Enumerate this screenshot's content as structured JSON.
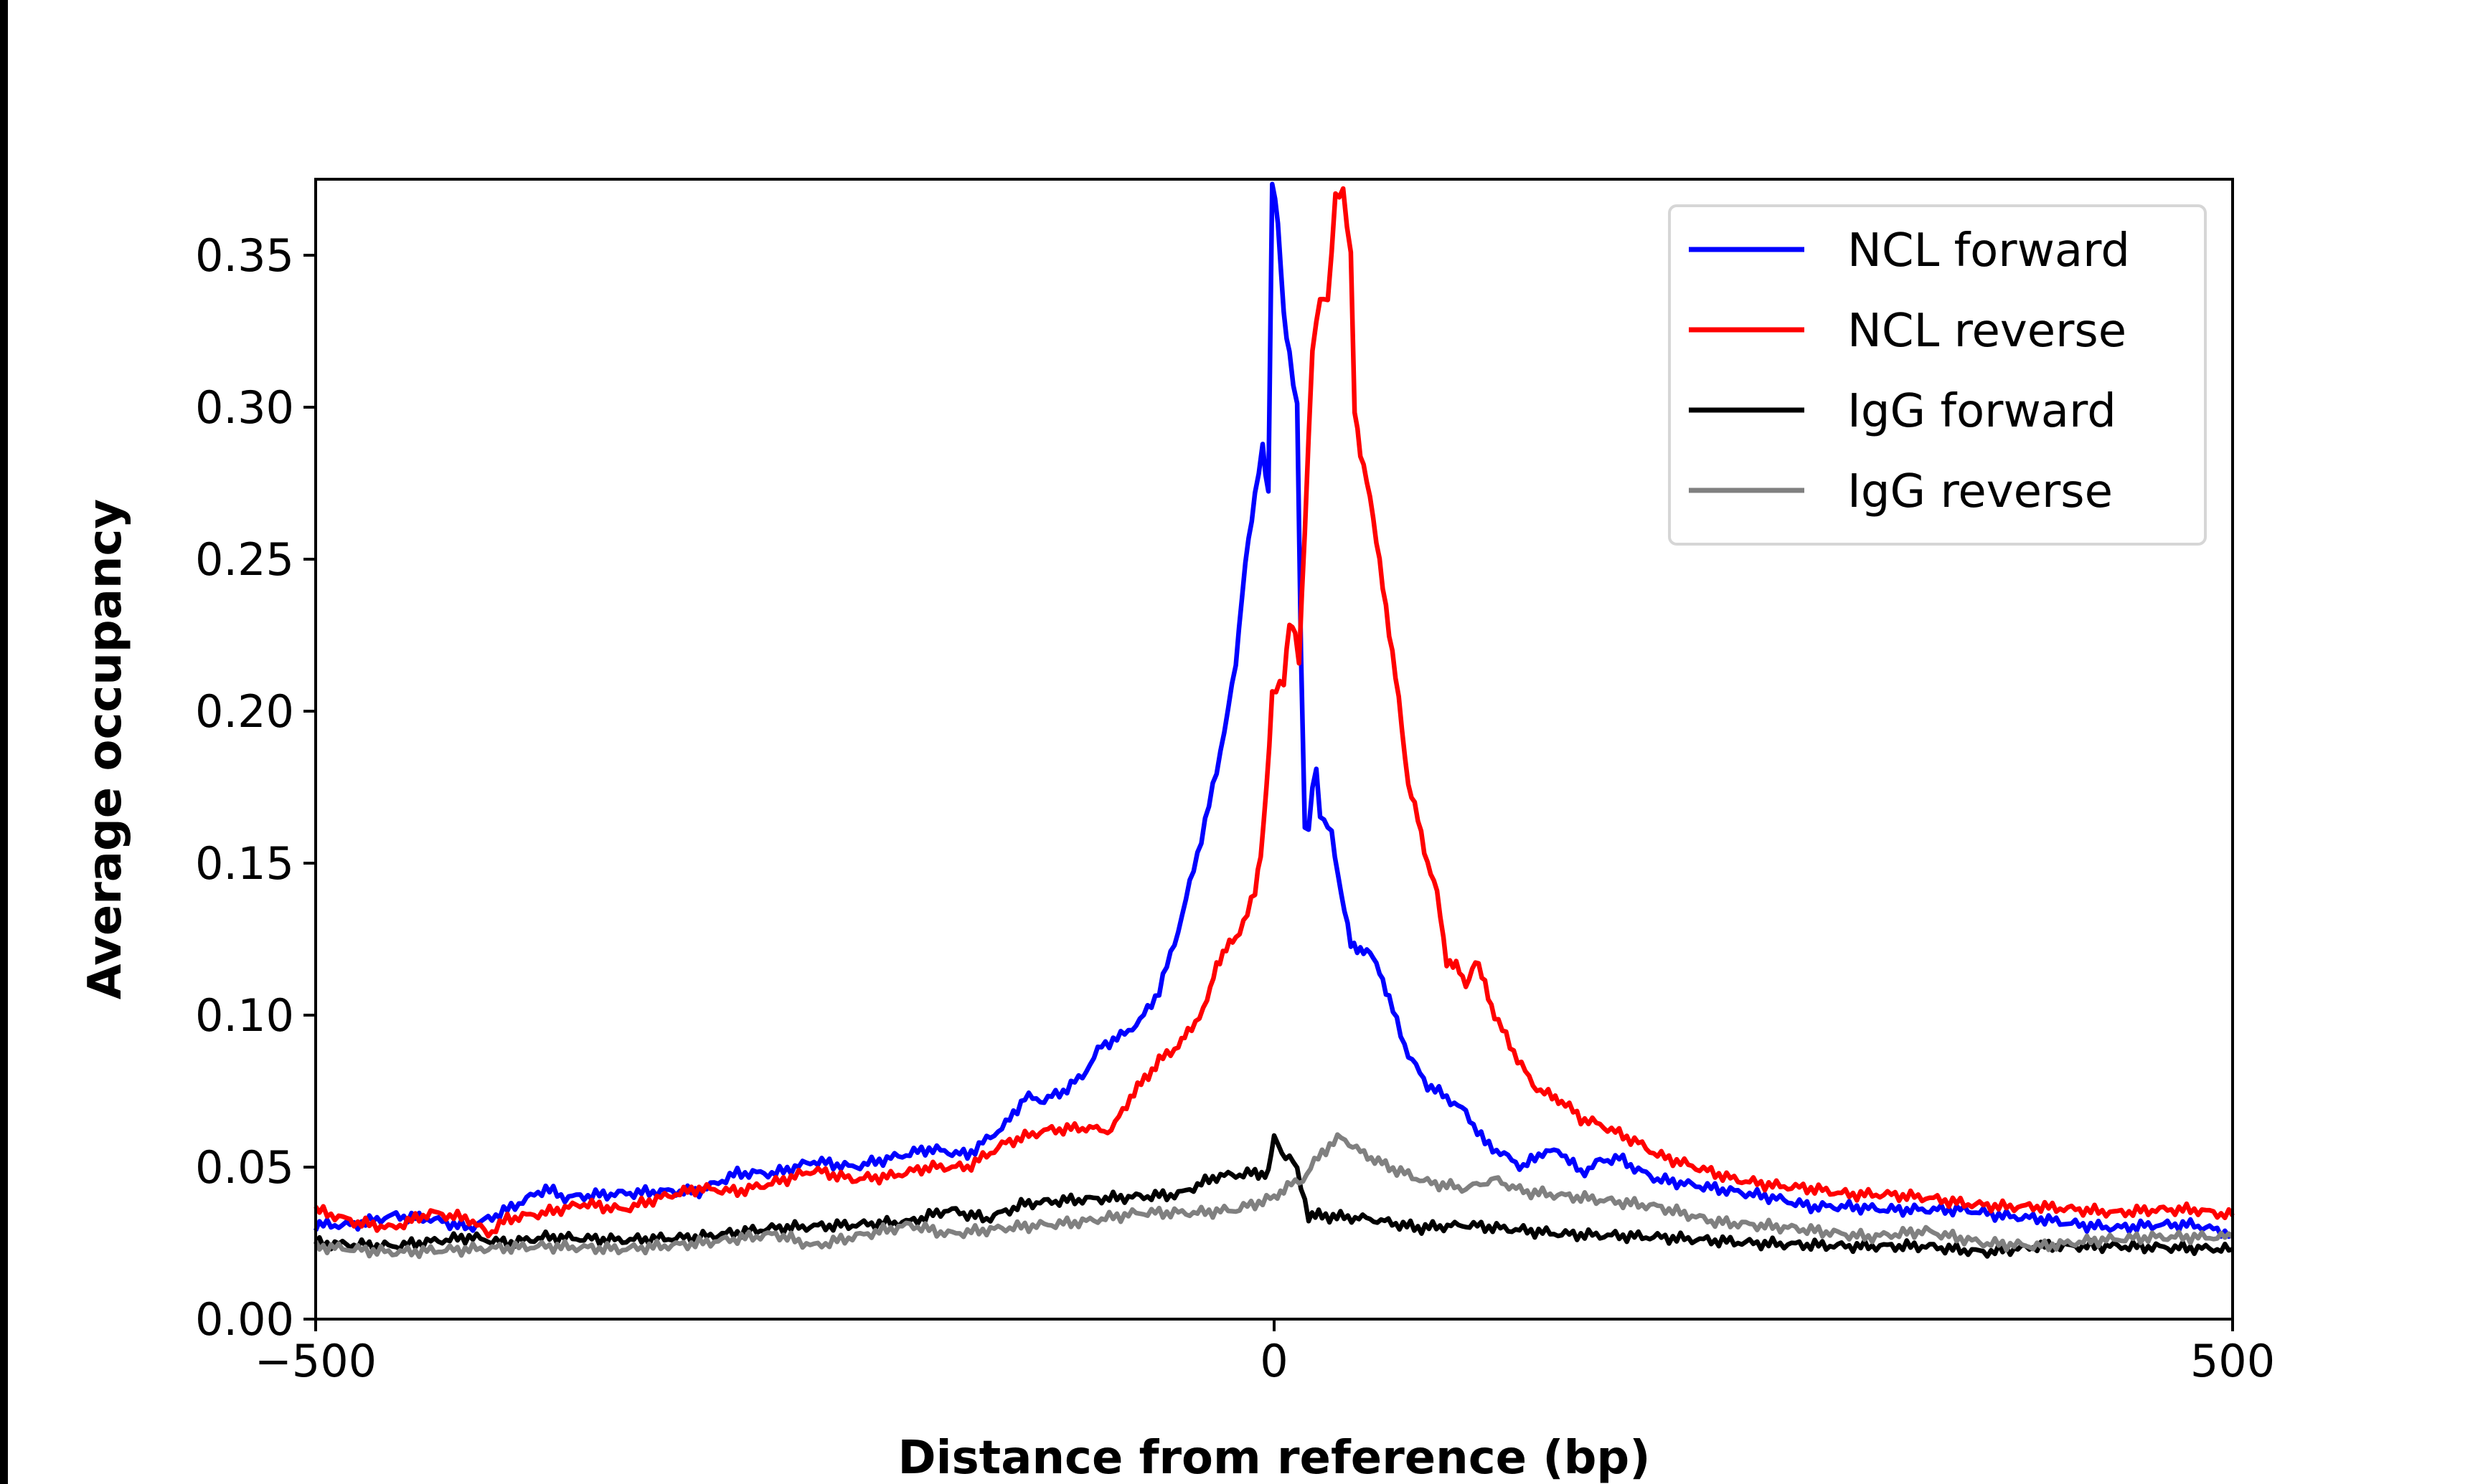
{
  "chart_data": {
    "type": "line",
    "title": "",
    "xlabel": "Distance from reference (bp)",
    "ylabel": "Average occupancy",
    "xlim": [
      -500,
      500
    ],
    "ylim": [
      0,
      0.375
    ],
    "xticks": [
      -500,
      0,
      500
    ],
    "xtick_labels": [
      "−500",
      "0",
      "500"
    ],
    "yticks": [
      0,
      0.05,
      0.1,
      0.15,
      0.2,
      0.25,
      0.3,
      0.35
    ],
    "ytick_labels": [
      "0.00",
      "0.05",
      "0.10",
      "0.15",
      "0.20",
      "0.25",
      "0.30",
      "0.35"
    ],
    "grid": false,
    "legend_position": "top-right",
    "series": [
      {
        "name": "NCL forward",
        "color": "#0000ff",
        "x": [
          -500,
          -480,
          -460,
          -440,
          -420,
          -400,
          -380,
          -370,
          -350,
          -320,
          -300,
          -280,
          -260,
          -240,
          -220,
          -200,
          -180,
          -160,
          -140,
          -130,
          -120,
          -110,
          -100,
          -90,
          -80,
          -70,
          -60,
          -50,
          -40,
          -30,
          -20,
          -15,
          -10,
          -6,
          -3,
          -1,
          2,
          5,
          8,
          12,
          14,
          16,
          18,
          20,
          22,
          24,
          30,
          35,
          40,
          45,
          50,
          55,
          60,
          70,
          80,
          90,
          100,
          110,
          120,
          130,
          140,
          150,
          160,
          170,
          180,
          190,
          200,
          220,
          240,
          260,
          280,
          300,
          320,
          340,
          360,
          380,
          400,
          420,
          440,
          460,
          480,
          500
        ],
        "y": [
          0.031,
          0.031,
          0.034,
          0.033,
          0.03,
          0.036,
          0.043,
          0.04,
          0.041,
          0.042,
          0.042,
          0.048,
          0.048,
          0.052,
          0.05,
          0.053,
          0.056,
          0.054,
          0.064,
          0.073,
          0.072,
          0.075,
          0.08,
          0.09,
          0.093,
          0.098,
          0.108,
          0.128,
          0.153,
          0.18,
          0.215,
          0.25,
          0.27,
          0.287,
          0.272,
          0.375,
          0.36,
          0.33,
          0.318,
          0.3,
          0.22,
          0.16,
          0.162,
          0.175,
          0.182,
          0.165,
          0.16,
          0.14,
          0.123,
          0.122,
          0.12,
          0.115,
          0.105,
          0.087,
          0.077,
          0.073,
          0.068,
          0.058,
          0.054,
          0.05,
          0.055,
          0.055,
          0.048,
          0.052,
          0.053,
          0.049,
          0.046,
          0.044,
          0.042,
          0.04,
          0.037,
          0.037,
          0.036,
          0.036,
          0.036,
          0.034,
          0.033,
          0.031,
          0.03,
          0.031,
          0.031,
          0.028
        ]
      },
      {
        "name": "NCL reverse",
        "color": "#ff0000",
        "x": [
          -500,
          -480,
          -460,
          -440,
          -420,
          -410,
          -400,
          -380,
          -360,
          -340,
          -320,
          -300,
          -280,
          -260,
          -240,
          -220,
          -200,
          -180,
          -160,
          -140,
          -130,
          -120,
          -100,
          -85,
          -75,
          -60,
          -50,
          -45,
          -35,
          -30,
          -25,
          -20,
          -10,
          -7,
          -4,
          -1,
          5,
          8,
          11,
          13,
          16,
          20,
          24,
          28,
          32,
          36,
          40,
          42,
          45,
          50,
          55,
          60,
          65,
          70,
          75,
          80,
          85,
          90,
          95,
          100,
          105,
          110,
          115,
          125,
          135,
          145,
          150,
          160,
          170,
          180,
          190,
          200,
          220,
          240,
          260,
          280,
          300,
          320,
          340,
          360,
          380,
          400,
          420,
          440,
          460,
          480,
          500
        ],
        "y": [
          0.036,
          0.032,
          0.03,
          0.035,
          0.033,
          0.028,
          0.033,
          0.035,
          0.038,
          0.036,
          0.04,
          0.043,
          0.042,
          0.045,
          0.049,
          0.046,
          0.047,
          0.05,
          0.05,
          0.058,
          0.06,
          0.062,
          0.063,
          0.062,
          0.073,
          0.085,
          0.09,
          0.094,
          0.104,
          0.117,
          0.122,
          0.125,
          0.14,
          0.153,
          0.175,
          0.205,
          0.21,
          0.23,
          0.225,
          0.215,
          0.26,
          0.32,
          0.335,
          0.335,
          0.37,
          0.37,
          0.35,
          0.3,
          0.285,
          0.27,
          0.25,
          0.225,
          0.205,
          0.175,
          0.165,
          0.15,
          0.14,
          0.118,
          0.116,
          0.11,
          0.118,
          0.11,
          0.1,
          0.088,
          0.077,
          0.073,
          0.072,
          0.066,
          0.064,
          0.061,
          0.058,
          0.054,
          0.05,
          0.046,
          0.044,
          0.043,
          0.041,
          0.041,
          0.04,
          0.038,
          0.037,
          0.037,
          0.036,
          0.035,
          0.036,
          0.036,
          0.034
        ]
      },
      {
        "name": "IgG forward",
        "color": "#000000",
        "x": [
          -500,
          -460,
          -420,
          -400,
          -380,
          -340,
          -300,
          -260,
          -220,
          -190,
          -170,
          -150,
          -130,
          -110,
          -80,
          -50,
          -30,
          -10,
          -3,
          0,
          4,
          10,
          14,
          18,
          25,
          50,
          75,
          100,
          150,
          200,
          250,
          300,
          340,
          370,
          400,
          440,
          500
        ],
        "y": [
          0.025,
          0.024,
          0.027,
          0.025,
          0.027,
          0.026,
          0.027,
          0.03,
          0.031,
          0.032,
          0.036,
          0.033,
          0.038,
          0.039,
          0.04,
          0.041,
          0.047,
          0.048,
          0.048,
          0.06,
          0.055,
          0.052,
          0.044,
          0.034,
          0.034,
          0.033,
          0.03,
          0.031,
          0.028,
          0.027,
          0.025,
          0.024,
          0.024,
          0.022,
          0.024,
          0.024,
          0.023
        ]
      },
      {
        "name": "IgG reverse",
        "color": "#808080",
        "x": [
          -500,
          -460,
          -420,
          -380,
          -340,
          -300,
          -260,
          -240,
          -220,
          -190,
          -170,
          -140,
          -100,
          -70,
          -40,
          -20,
          0,
          5,
          15,
          25,
          35,
          45,
          60,
          80,
          100,
          115,
          130,
          160,
          200,
          230,
          270,
          310,
          340,
          370,
          400,
          430,
          460,
          500
        ],
        "y": [
          0.024,
          0.022,
          0.023,
          0.024,
          0.023,
          0.025,
          0.028,
          0.024,
          0.027,
          0.031,
          0.028,
          0.03,
          0.032,
          0.035,
          0.035,
          0.036,
          0.04,
          0.043,
          0.046,
          0.055,
          0.06,
          0.055,
          0.05,
          0.045,
          0.043,
          0.046,
          0.042,
          0.04,
          0.037,
          0.032,
          0.03,
          0.027,
          0.029,
          0.025,
          0.024,
          0.026,
          0.027,
          0.027
        ]
      }
    ]
  }
}
